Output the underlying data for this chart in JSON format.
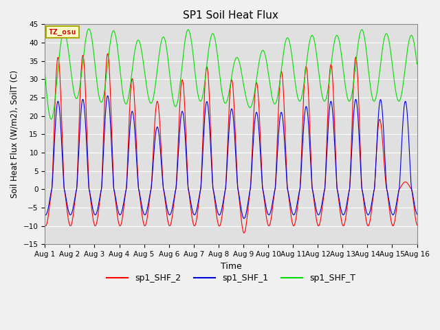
{
  "title": "SP1 Soil Heat Flux",
  "xlabel": "Time",
  "ylabel": "Soil Heat Flux (W/m2), SoilT (C)",
  "ylim": [
    -15,
    45
  ],
  "yticks": [
    -15,
    -10,
    -5,
    0,
    5,
    10,
    15,
    20,
    25,
    30,
    35,
    40,
    45
  ],
  "xlim_days": [
    0,
    15
  ],
  "xtick_labels": [
    "Aug 1",
    "Aug 2",
    "Aug 3",
    "Aug 4",
    "Aug 5",
    "Aug 6",
    "Aug 7",
    "Aug 8",
    "Aug 9",
    "Aug 10",
    "Aug 11",
    "Aug 12",
    "Aug 13",
    "Aug 14",
    "Aug 15",
    "Aug 16"
  ],
  "color_shf2": "#ff0000",
  "color_shf1": "#0000dd",
  "color_shft": "#00dd00",
  "legend_labels": [
    "sp1_SHF_2",
    "sp1_SHF_1",
    "sp1_SHF_T"
  ],
  "tz_label": "TZ_osu",
  "background_color": "#e0e0e0",
  "fig_background": "#f0f0f0",
  "grid_color": "#ffffff"
}
